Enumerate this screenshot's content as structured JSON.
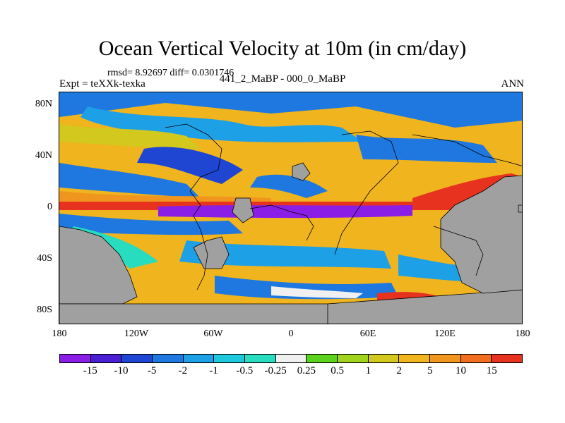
{
  "title": "Ocean Vertical Velocity at 10m (in cm/day)",
  "stats": "rmsd= 8.92697 diff= 0.0301746",
  "expt": "Expt = teXXk-texka",
  "case": "441_2_MaBP - 000_0_MaBP",
  "period": "ANN",
  "lat_labels": [
    "80N",
    "40N",
    "0",
    "40S",
    "80S"
  ],
  "lon_labels": [
    "180",
    "120W",
    "60W",
    "0",
    "60E",
    "120E",
    "180"
  ],
  "colorbar": {
    "colors": [
      "#8a1ee6",
      "#4a1ed2",
      "#1e46d2",
      "#1e78e0",
      "#1ea0e6",
      "#1ec8dc",
      "#28dcc0",
      "#f0f0f0",
      "#5ad21e",
      "#a0d21e",
      "#d2c81e",
      "#f0b41e",
      "#f0961e",
      "#f06e1e",
      "#e6321e"
    ],
    "labels": [
      "-15",
      "-10",
      "-5",
      "-2",
      "-1",
      "-0.5",
      "-0.25",
      "0.25",
      "0.5",
      "1",
      "2",
      "5",
      "10",
      "15"
    ]
  },
  "land_color": "#a0a0a0"
}
